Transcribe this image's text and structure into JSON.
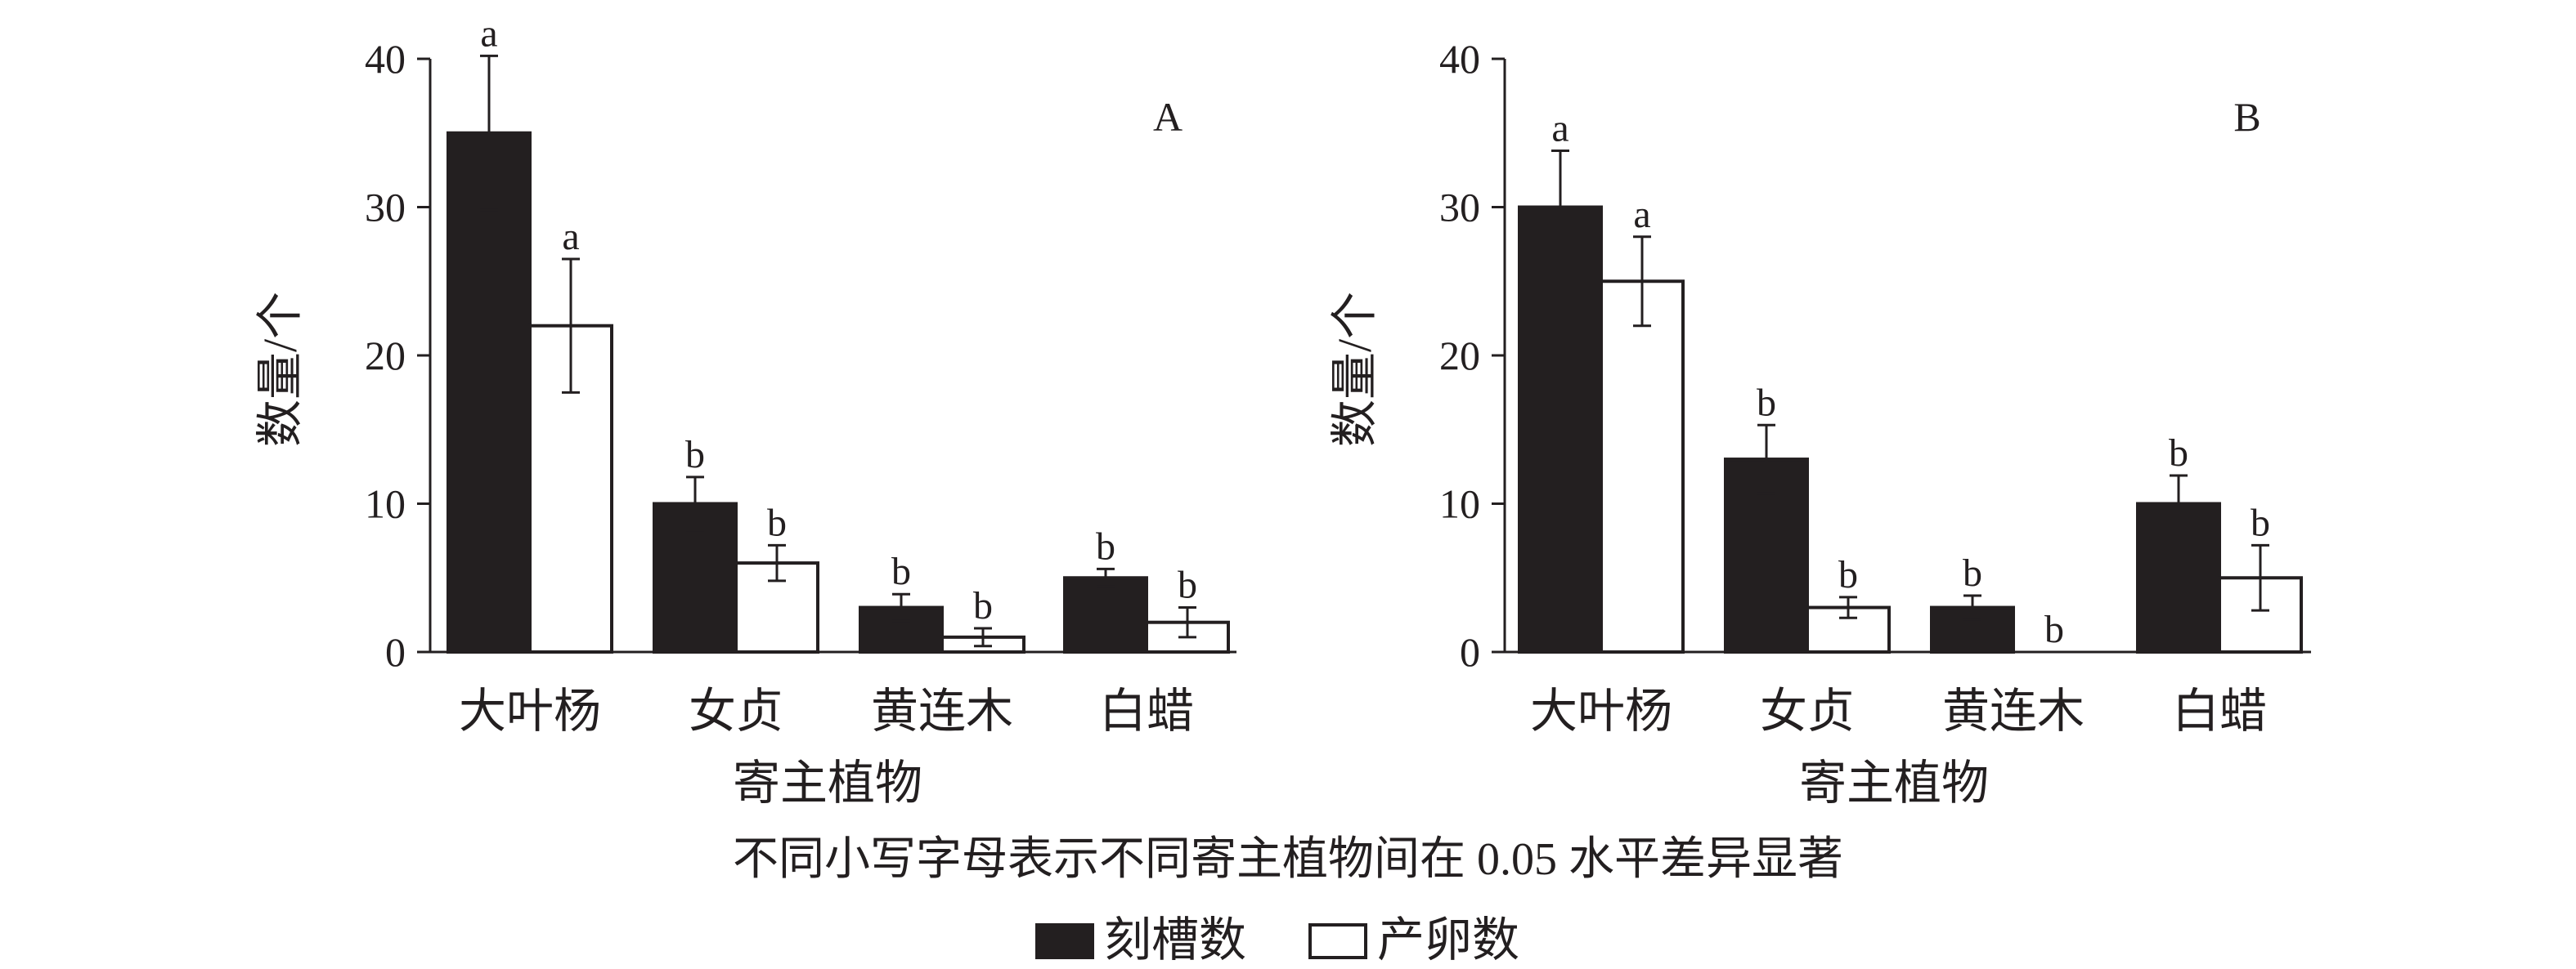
{
  "chart_data": [
    {
      "type": "bar",
      "panel_label": "A",
      "categories": [
        "大叶杨",
        "女贞",
        "黄连木",
        "白蜡"
      ],
      "xlabel": "寄主植物",
      "ylabel": "数量/个",
      "ylim": [
        0,
        40
      ],
      "yticks": [
        0,
        10,
        20,
        30,
        40
      ],
      "series": [
        {
          "name": "刻槽数",
          "values": [
            35,
            10,
            3,
            5
          ],
          "errors": [
            5.2,
            1.8,
            0.9,
            0.6
          ],
          "letters": [
            "a",
            "b",
            "b",
            "b"
          ],
          "fill": "#231f20"
        },
        {
          "name": "产卵数",
          "values": [
            22,
            6,
            1,
            2
          ],
          "errors": [
            4.5,
            1.2,
            0.6,
            1.0
          ],
          "letters": [
            "a",
            "b",
            "b",
            "b"
          ],
          "fill": "#ffffff"
        }
      ]
    },
    {
      "type": "bar",
      "panel_label": "B",
      "categories": [
        "大叶杨",
        "女贞",
        "黄连木",
        "白蜡"
      ],
      "xlabel": "寄主植物",
      "ylabel": "数量/个",
      "ylim": [
        0,
        40
      ],
      "yticks": [
        0,
        10,
        20,
        30,
        40
      ],
      "series": [
        {
          "name": "刻槽数",
          "values": [
            30,
            13,
            3,
            10
          ],
          "errors": [
            3.8,
            2.3,
            0.8,
            1.9
          ],
          "letters": [
            "a",
            "b",
            "b",
            "b"
          ],
          "fill": "#231f20"
        },
        {
          "name": "产卵数",
          "values": [
            25,
            3,
            0,
            5
          ],
          "errors": [
            3.0,
            0.7,
            0,
            2.2
          ],
          "letters": [
            "a",
            "b",
            "b",
            "b"
          ],
          "fill": "#ffffff"
        }
      ]
    }
  ],
  "note": "不同小写字母表示不同寄主植物间在 0.05 水平差异显著",
  "legend": [
    {
      "label": "刻槽数",
      "fill": "#231f20"
    },
    {
      "label": "产卵数",
      "fill": "#ffffff"
    }
  ],
  "colors": {
    "ink": "#231f20",
    "paper": "#ffffff"
  }
}
